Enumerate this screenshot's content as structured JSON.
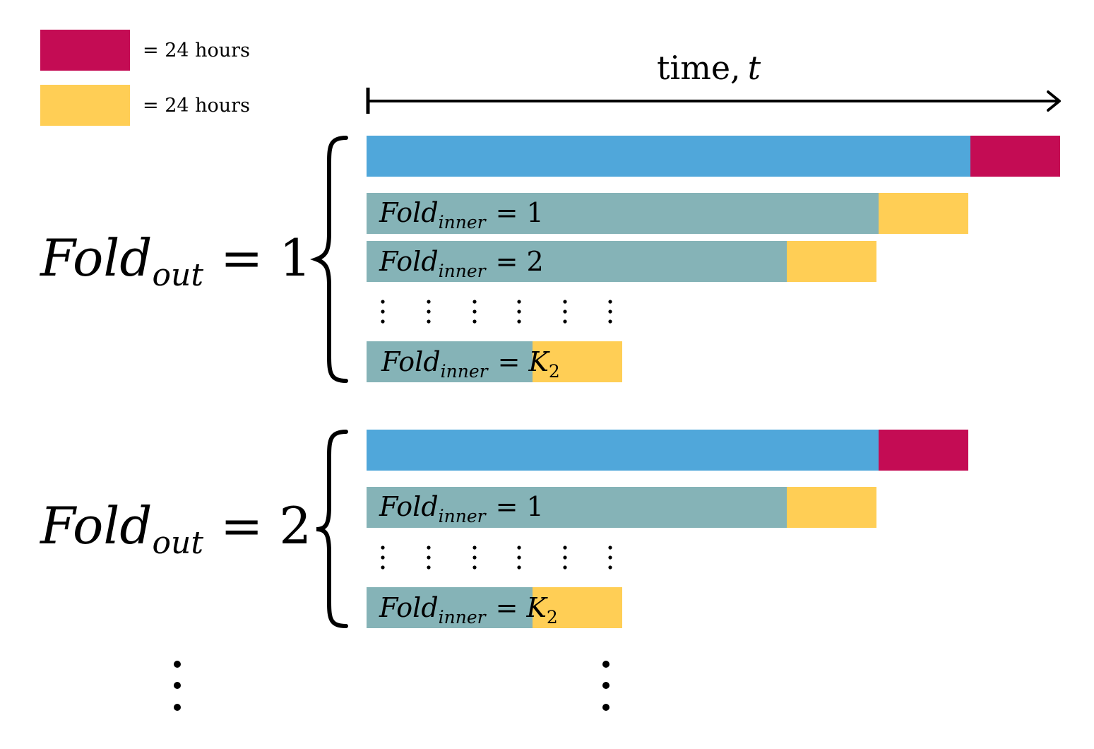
{
  "colors": {
    "test": "#c40c54",
    "validation": "#ffce55",
    "train_outer": "#50a7da",
    "train_inner": "#85b3b7",
    "ink": "#000000"
  },
  "legend": [
    {
      "swatch_color": "test",
      "label": "= 24 hours"
    },
    {
      "swatch_color": "validation",
      "label": "= 24 hours"
    }
  ],
  "time_axis": {
    "label_text": "time,",
    "label_var": "t"
  },
  "outer_folds": [
    {
      "label": {
        "base": "Fold",
        "sub": "out",
        "rel": "= 1"
      },
      "inner_folds": [
        {
          "base": "Fold",
          "sub": "inner",
          "rel": "= 1"
        },
        {
          "base": "Fold",
          "sub": "inner",
          "rel": "= 2"
        },
        {
          "base": "Fold",
          "sub": "inner",
          "rel": "= ",
          "var": "K",
          "var_sub": "2"
        }
      ]
    },
    {
      "label": {
        "base": "Fold",
        "sub": "out",
        "rel": "= 2"
      },
      "inner_folds": [
        {
          "base": "Fold",
          "sub": "inner",
          "rel": "= 1"
        },
        {
          "base": "Fold",
          "sub": "inner",
          "rel": "= ",
          "var": "K",
          "var_sub": "2"
        }
      ]
    }
  ],
  "continuation_icons": [
    "vertical-ellipsis-icon",
    "vertical-ellipsis-icon"
  ]
}
